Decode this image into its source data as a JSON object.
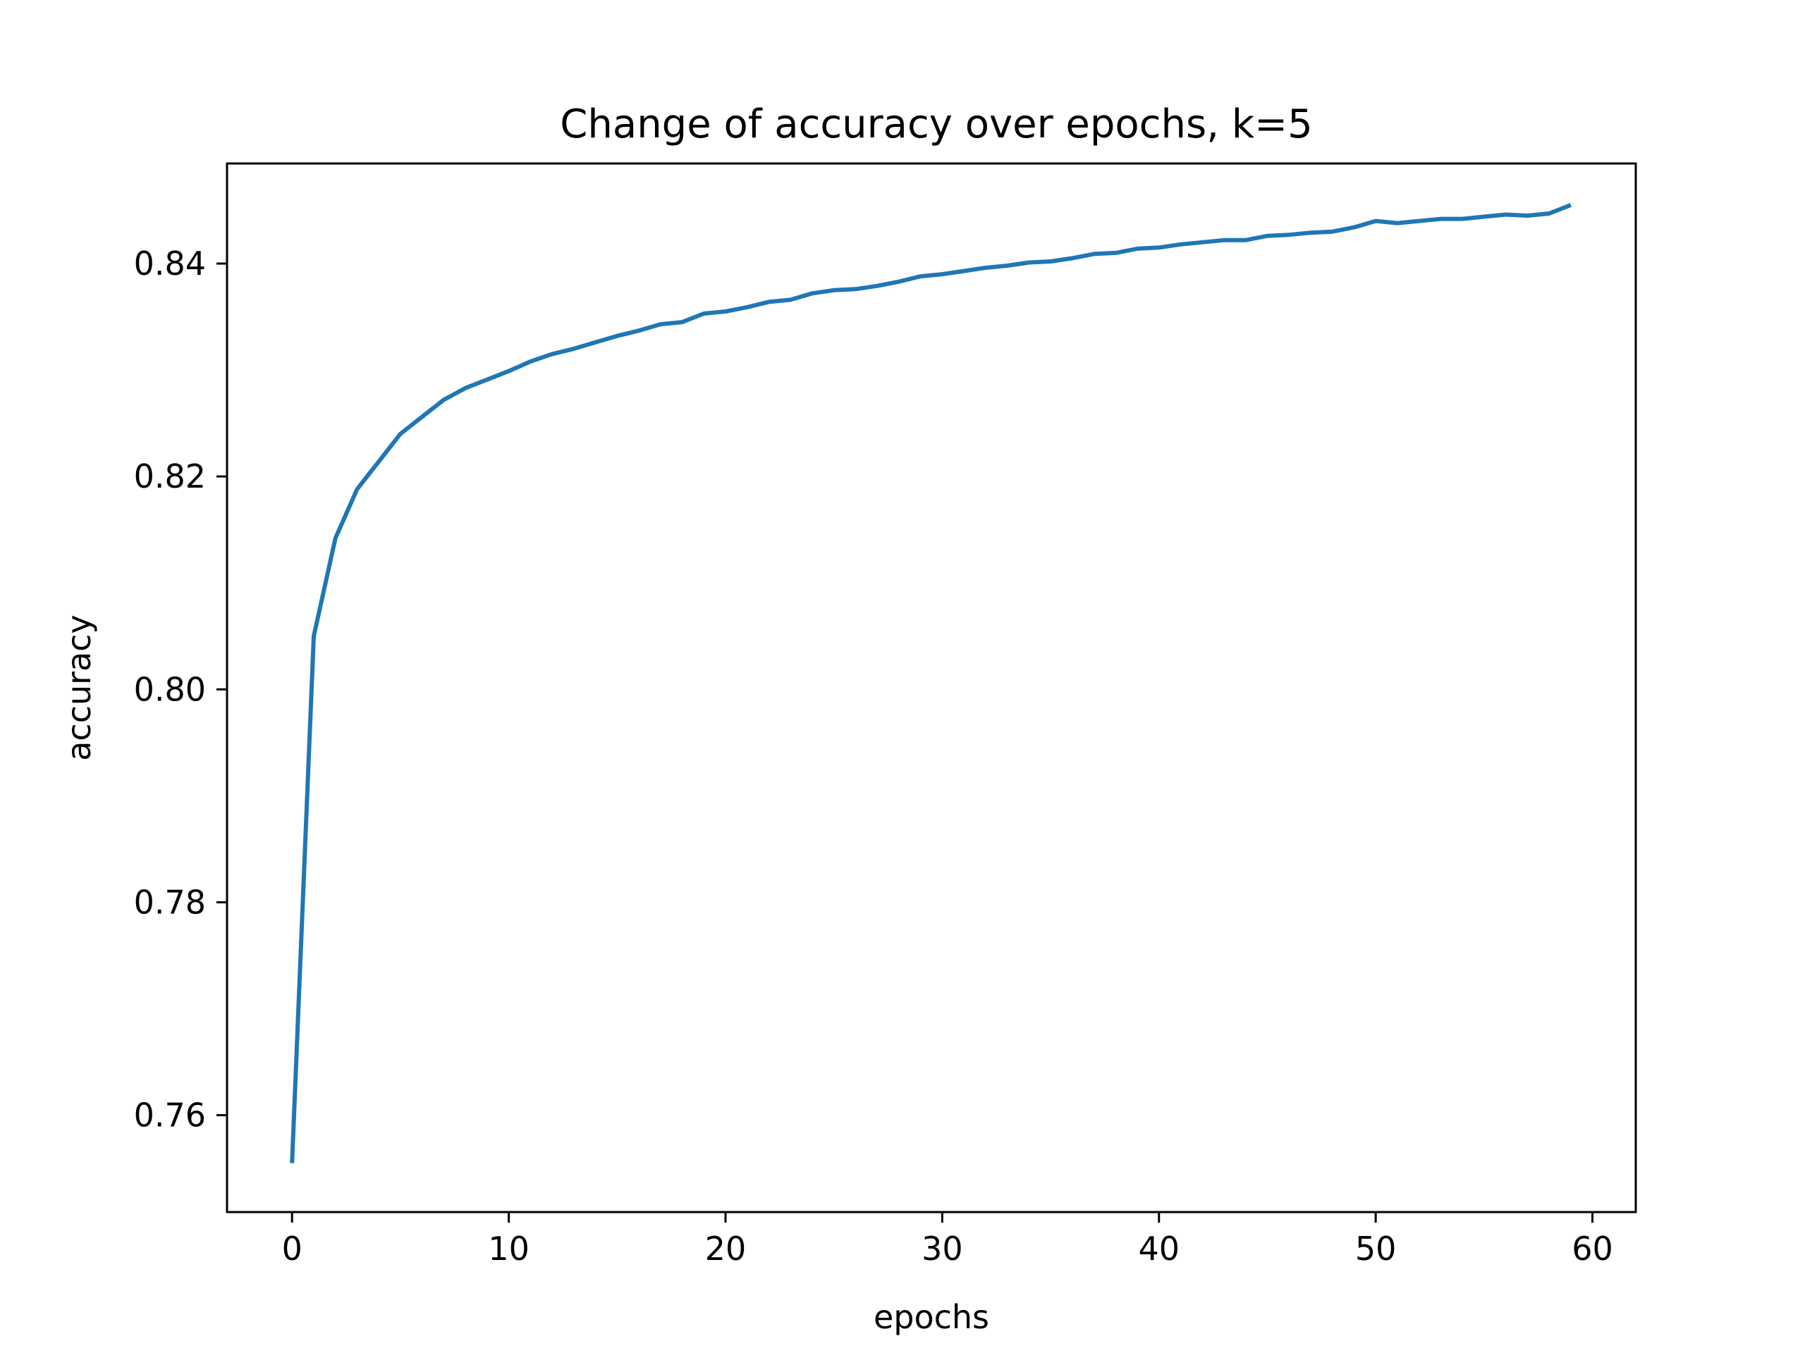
{
  "chart_data": {
    "type": "line",
    "title": "Change of accuracy over epochs, k=5",
    "xlabel": "epochs",
    "ylabel": "accuracy",
    "xlim": [
      -3,
      62
    ],
    "ylim": [
      0.7509,
      0.8494
    ],
    "xticks": [
      0,
      10,
      20,
      30,
      40,
      50,
      60
    ],
    "yticks": [
      0.76,
      0.78,
      0.8,
      0.82,
      0.84
    ],
    "xtick_labels": [
      "0",
      "10",
      "20",
      "30",
      "40",
      "50",
      "60"
    ],
    "ytick_labels": [
      "0.76",
      "0.78",
      "0.80",
      "0.82",
      "0.84"
    ],
    "grid": false,
    "colors": {
      "line": "#1f77b4",
      "axes": "#000000",
      "background": "#ffffff"
    },
    "series": [
      {
        "x": [
          0,
          1,
          2,
          3,
          4,
          5,
          6,
          7,
          8,
          9,
          10,
          11,
          12,
          13,
          14,
          15,
          16,
          17,
          18,
          19,
          20,
          21,
          22,
          23,
          24,
          25,
          26,
          27,
          28,
          29,
          30,
          31,
          32,
          33,
          34,
          35,
          36,
          37,
          38,
          39,
          40,
          41,
          42,
          43,
          44,
          45,
          46,
          47,
          48,
          49,
          50,
          51,
          52,
          53,
          54,
          55,
          56,
          57,
          58,
          59
        ],
        "values": [
          0.7555,
          0.805,
          0.8142,
          0.8188,
          0.8214,
          0.824,
          0.8256,
          0.8272,
          0.8283,
          0.8291,
          0.8299,
          0.8308,
          0.8315,
          0.832,
          0.8326,
          0.8332,
          0.8337,
          0.8343,
          0.8345,
          0.8353,
          0.8355,
          0.8359,
          0.8364,
          0.8366,
          0.8372,
          0.8375,
          0.8376,
          0.8379,
          0.8383,
          0.8388,
          0.839,
          0.8393,
          0.8396,
          0.8398,
          0.8401,
          0.8402,
          0.8405,
          0.8409,
          0.841,
          0.8414,
          0.8415,
          0.8418,
          0.842,
          0.8422,
          0.8422,
          0.8426,
          0.8427,
          0.8429,
          0.843,
          0.8434,
          0.844,
          0.8438,
          0.844,
          0.8442,
          0.8442,
          0.8444,
          0.8446,
          0.8445,
          0.8447,
          0.8455
        ]
      }
    ]
  }
}
